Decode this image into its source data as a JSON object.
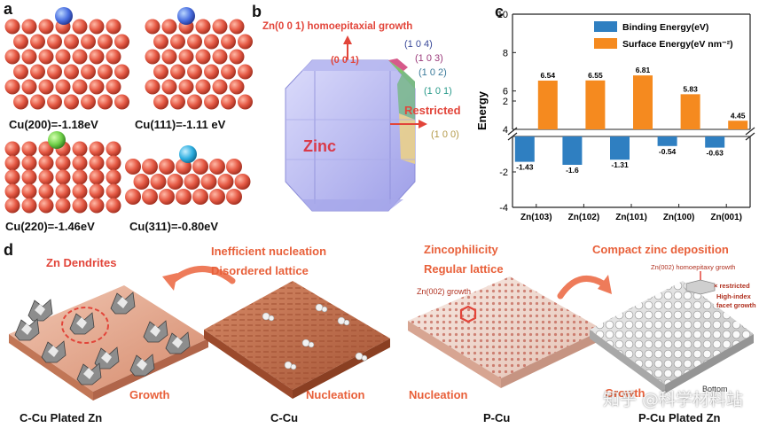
{
  "panel_a": {
    "label": "a",
    "captions": [
      "Cu(200)=-1.18eV",
      "Cu(111)=-1.11 eV",
      "Cu(220)=-1.46eV",
      "Cu(311)=-0.80eV"
    ]
  },
  "panel_b": {
    "label": "b",
    "title": "Zn(0 0 1) homoepitaxial growth",
    "center": "Zinc",
    "restricted": "Restricted",
    "facets": [
      "(0 0 1)",
      "(1 0 4)",
      "(1 0 3)",
      "(1 0 2)",
      "(1 0 1)",
      "(1 0 0)"
    ]
  },
  "panel_c": {
    "label": "c"
  },
  "chart_data": {
    "type": "bar",
    "categories": [
      "Zn(103)",
      "Zn(102)",
      "Zn(101)",
      "Zn(100)",
      "Zn(001)"
    ],
    "series": [
      {
        "name": "Binding Energy(eV)",
        "values": [
          -1.43,
          -1.6,
          -1.31,
          -0.54,
          -0.63
        ],
        "color": "#2f7fc1"
      },
      {
        "name": "Surface Energy(eV nm⁻²)",
        "values": [
          6.54,
          6.55,
          6.81,
          5.83,
          4.45
        ],
        "color": "#f58a1f"
      }
    ],
    "ylabel": "Energy",
    "yticks": [
      "10",
      "8",
      "6",
      "4",
      "2",
      "-2",
      "-4"
    ],
    "ylim_upper": [
      4,
      10
    ],
    "ylim_lower": [
      -4,
      0
    ],
    "axis_break": true,
    "legend_position": "top-right",
    "data_labels": [
      "-1.43",
      "-1.6",
      "-1.31",
      "-0.54",
      "-0.63",
      "6.54",
      "6.55",
      "6.81",
      "5.83",
      "4.45"
    ]
  },
  "panel_d": {
    "label": "d",
    "zn_dendrites": "Zn Dendrites",
    "inefficient": "Inefficient nucleation",
    "disordered": "Disordered lattice",
    "zincophilicity": "Zincophilicity",
    "regular": "Regular lattice",
    "compact": "Compact zinc deposition",
    "zn002_growth": "Zn(002) growth",
    "homoepitaxy": "Zn(002) homoepitaxy growth",
    "x_restricted": "× restricted",
    "high_index": "High-index facet growth",
    "growth_left": "Growth",
    "nucleation_mid": "Nucleation",
    "nucleation_right": "Nucleation",
    "growth_right": "Growth",
    "bottom": [
      "C-Cu Plated Zn",
      "C-Cu",
      "P-Cu",
      "P-Cu Plated Zn"
    ],
    "bottom_extra": "Bottom",
    "watermark": "知乎 @科学材料站"
  },
  "colors": {
    "cu_atom": "#e65a45",
    "binding": "#2f7fc1",
    "surface": "#f58a1f",
    "accent_red": "#e2453a"
  }
}
